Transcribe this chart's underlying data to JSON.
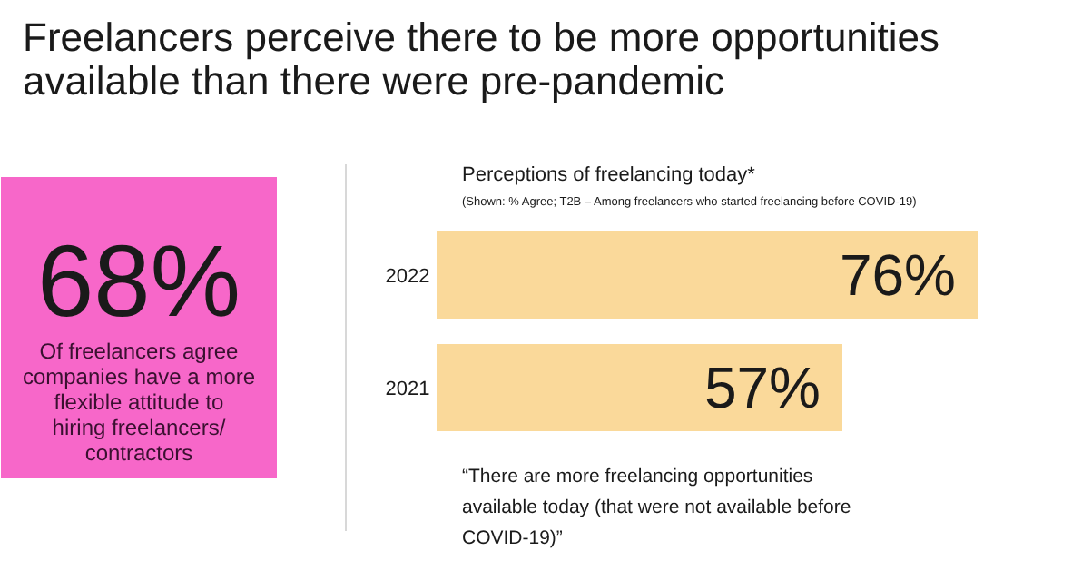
{
  "chart_data": {
    "type": "bar",
    "orientation": "horizontal",
    "title": "Freelancers perceive there to be more opportunities available than there were pre-pandemic",
    "subtitle": "Perceptions of freelancing today*",
    "categories": [
      "2022",
      "2021"
    ],
    "values": [
      76,
      57
    ],
    "color": "#fad99a",
    "value_labels": [
      "76%",
      "57%"
    ],
    "annotations": [
      "(Shown: % Agree; T2B – Among freelancers who started freelancing before COVID-19)",
      "“There are more freelancing opportunities available today (that were not available before COVID-19)”",
      "68%",
      "Of freelancers agree companies have a more flexible attitude to hiring freelancers/ contractors"
    ]
  }
}
